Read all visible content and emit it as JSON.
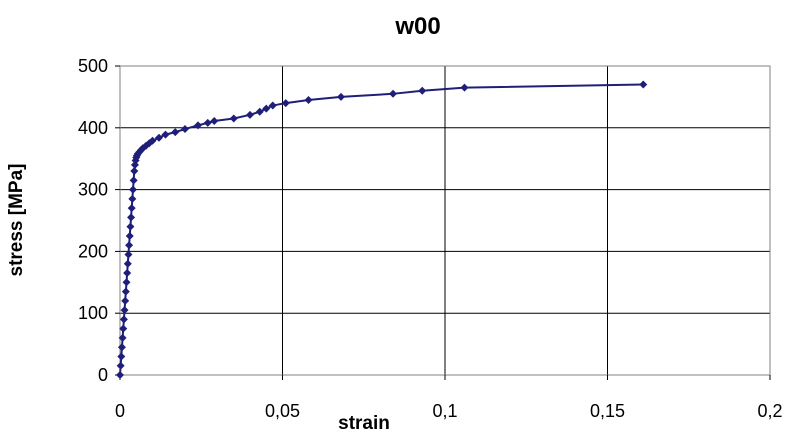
{
  "chart_data": {
    "type": "line",
    "title": "w00",
    "xlabel": "strain",
    "ylabel": "stress [MPa]",
    "xlim": [
      0,
      0.2
    ],
    "ylim": [
      0,
      500
    ],
    "xticks": [
      0,
      0.05,
      0.1,
      0.15,
      0.2
    ],
    "xtick_labels": [
      "0",
      "0,05",
      "0,1",
      "0,15",
      "0,2"
    ],
    "yticks": [
      0,
      100,
      200,
      300,
      400,
      500
    ],
    "ytick_labels": [
      "0",
      "100",
      "200",
      "300",
      "400",
      "500"
    ],
    "grid": true,
    "legend": "none",
    "colors": {
      "series": "#1F1F7A",
      "grid": "#000000",
      "frame": "#808080"
    },
    "marker": "diamond",
    "series": [
      {
        "x": [
          0,
          0.0002,
          0.0004,
          0.0006,
          0.0008,
          0.001,
          0.0012,
          0.0014,
          0.0016,
          0.0018,
          0.002,
          0.0022,
          0.0024,
          0.0026,
          0.0028,
          0.003,
          0.0032,
          0.0034,
          0.0036,
          0.0038,
          0.004,
          0.0042,
          0.0044,
          0.0046,
          0.0048,
          0.005,
          0.0052,
          0.0055,
          0.006,
          0.0065,
          0.007,
          0.008,
          0.009,
          0.01,
          0.012,
          0.014,
          0.017,
          0.02,
          0.024,
          0.027,
          0.029,
          0.035,
          0.04,
          0.043,
          0.045,
          0.047,
          0.051,
          0.058,
          0.068,
          0.084,
          0.093,
          0.106,
          0.161
        ],
        "y": [
          0,
          15,
          30,
          45,
          60,
          75,
          90,
          105,
          120,
          135,
          150,
          165,
          180,
          195,
          210,
          225,
          240,
          255,
          270,
          285,
          300,
          315,
          330,
          340,
          347,
          352,
          355,
          358,
          361,
          364,
          367,
          371,
          375,
          379,
          384,
          389,
          393,
          398,
          404,
          408,
          411,
          415,
          421,
          426,
          431,
          436,
          440,
          445,
          450,
          455,
          460,
          465,
          470
        ]
      }
    ]
  }
}
